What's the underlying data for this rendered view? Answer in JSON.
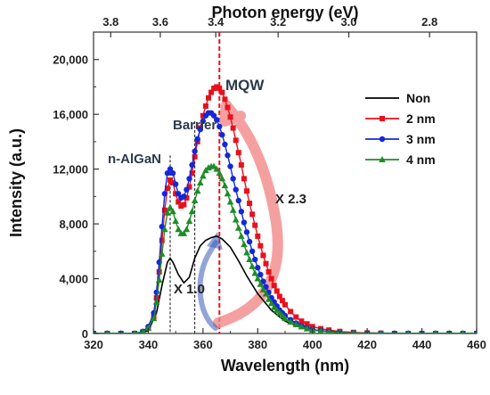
{
  "chart_data": {
    "type": "line",
    "xlabel": "Wavelength (nm)",
    "ylabel": "Intensity (a.u.)",
    "top_xlabel": "Photon energy (eV)",
    "xlim": [
      320,
      460
    ],
    "ylim": [
      0,
      22000
    ],
    "x_ticks": [
      320,
      340,
      360,
      380,
      400,
      420,
      440,
      460
    ],
    "x_tick_labels": [
      "320",
      "340",
      "360",
      "380",
      "400",
      "420",
      "440",
      "460"
    ],
    "y_ticks": [
      0,
      4000,
      8000,
      12000,
      16000,
      20000
    ],
    "y_tick_labels": [
      "0",
      "4,000",
      "8,000",
      "12,000",
      "16,000",
      "20,000"
    ],
    "top_ticks": [
      3.8,
      3.6,
      3.4,
      3.2,
      3.0,
      2.8
    ],
    "top_tick_labels": [
      "3.8",
      "3.6",
      "3.4",
      "3.2",
      "3.0",
      "2.8"
    ],
    "legend_position": "top-right",
    "series": [
      {
        "name": "Non",
        "color": "#000000",
        "marker": "none",
        "x": [
          320,
          336,
          340,
          343,
          345,
          347,
          348,
          349,
          351,
          353,
          355,
          357,
          359,
          361,
          363,
          365,
          367,
          370,
          373,
          376,
          380,
          385,
          390,
          395,
          400,
          410,
          420,
          440,
          460
        ],
        "y": [
          0,
          0,
          200,
          1500,
          3500,
          5200,
          5500,
          5200,
          4300,
          3700,
          4100,
          5500,
          6400,
          6800,
          7000,
          7100,
          6900,
          6300,
          5300,
          4200,
          2900,
          1700,
          900,
          500,
          250,
          80,
          30,
          0,
          0
        ]
      },
      {
        "name": "2 nm",
        "color": "#e8101c",
        "marker": "square",
        "x": [
          320,
          325,
          330,
          335,
          338,
          340,
          342,
          343,
          344,
          345,
          346,
          347,
          348,
          349,
          350,
          351,
          352,
          353,
          354,
          355,
          356,
          357,
          358,
          359,
          360,
          361,
          362,
          363,
          364,
          365,
          366,
          367,
          368,
          369,
          370,
          371,
          372,
          373,
          374,
          375,
          376,
          377,
          378,
          379,
          380,
          381,
          382,
          383,
          384,
          385,
          386,
          387,
          388,
          389,
          390,
          392,
          394,
          396,
          398,
          400,
          403,
          406,
          410,
          415,
          420,
          425,
          430,
          435,
          440,
          445,
          450,
          455,
          460
        ],
        "y": [
          0,
          0,
          0,
          0,
          100,
          400,
          1200,
          2600,
          4500,
          6800,
          9000,
          10600,
          11200,
          11000,
          10200,
          9600,
          9300,
          9400,
          9900,
          10700,
          11700,
          12900,
          14000,
          15000,
          15900,
          16600,
          17200,
          17600,
          17900,
          18000,
          17900,
          17600,
          17100,
          16500,
          15800,
          15000,
          14100,
          13200,
          12300,
          11300,
          10400,
          9500,
          8700,
          7900,
          7100,
          6400,
          5700,
          5100,
          4500,
          4000,
          3500,
          3100,
          2700,
          2400,
          2100,
          1600,
          1200,
          900,
          700,
          500,
          350,
          250,
          150,
          80,
          40,
          20,
          0,
          0,
          0,
          0,
          0,
          0,
          0
        ]
      },
      {
        "name": "3 nm",
        "color": "#1428d8",
        "marker": "circle",
        "x": [
          320,
          325,
          330,
          335,
          338,
          340,
          342,
          343,
          344,
          345,
          346,
          347,
          348,
          349,
          350,
          351,
          352,
          353,
          354,
          355,
          356,
          357,
          358,
          359,
          360,
          361,
          362,
          363,
          364,
          365,
          366,
          367,
          368,
          369,
          370,
          371,
          372,
          373,
          374,
          375,
          376,
          377,
          378,
          379,
          380,
          381,
          382,
          383,
          384,
          385,
          386,
          387,
          388,
          389,
          390,
          392,
          394,
          396,
          398,
          400,
          403,
          406,
          410,
          415,
          420,
          425,
          430,
          435,
          440,
          445,
          450,
          455,
          460
        ],
        "y": [
          0,
          0,
          0,
          0,
          150,
          500,
          1500,
          3000,
          5200,
          7800,
          10200,
          11700,
          12000,
          11700,
          10900,
          10200,
          9900,
          10000,
          10500,
          11300,
          12300,
          13300,
          14200,
          14900,
          15500,
          15900,
          16100,
          16100,
          15900,
          15600,
          15100,
          14500,
          13800,
          13000,
          12200,
          11300,
          10500,
          9700,
          8900,
          8100,
          7400,
          6700,
          6000,
          5400,
          4800,
          4300,
          3800,
          3400,
          3000,
          2600,
          2300,
          2000,
          1700,
          1500,
          1300,
          1000,
          750,
          550,
          400,
          300,
          200,
          130,
          80,
          40,
          20,
          0,
          0,
          0,
          0,
          0,
          0,
          0,
          0
        ]
      },
      {
        "name": "4 nm",
        "color": "#1e8c28",
        "marker": "triangle",
        "x": [
          320,
          325,
          330,
          335,
          338,
          340,
          342,
          343,
          344,
          345,
          346,
          347,
          348,
          349,
          350,
          351,
          352,
          353,
          354,
          355,
          356,
          357,
          358,
          359,
          360,
          361,
          362,
          363,
          364,
          365,
          366,
          367,
          368,
          369,
          370,
          371,
          372,
          373,
          374,
          375,
          376,
          377,
          378,
          379,
          380,
          381,
          382,
          383,
          384,
          385,
          386,
          387,
          388,
          389,
          390,
          392,
          394,
          396,
          398,
          400,
          403,
          406,
          410,
          415,
          420,
          425,
          430,
          435,
          440,
          445,
          450,
          455,
          460
        ],
        "y": [
          0,
          0,
          0,
          0,
          100,
          400,
          1100,
          2300,
          3900,
          5800,
          7600,
          8800,
          9200,
          8900,
          8200,
          7600,
          7300,
          7300,
          7600,
          8200,
          8900,
          9700,
          10400,
          11000,
          11500,
          11900,
          12100,
          12200,
          12200,
          12000,
          11700,
          11300,
          10800,
          10200,
          9600,
          9000,
          8300,
          7700,
          7100,
          6500,
          5900,
          5400,
          4900,
          4400,
          4000,
          3600,
          3200,
          2900,
          2500,
          2200,
          1900,
          1700,
          1500,
          1300,
          1100,
          850,
          650,
          500,
          350,
          250,
          170,
          110,
          70,
          40,
          20,
          0,
          0,
          0,
          0,
          0,
          0,
          0,
          0
        ]
      }
    ],
    "annotations": {
      "mqw": "MQW",
      "barrier": "Barrier",
      "n_algan": "n-AlGaN",
      "x23": "X 2.3",
      "x10": "X 1.0"
    },
    "reference_lines": {
      "n_algan_nm": 348,
      "barrier_nm": 357,
      "mqw_nm": 366
    }
  }
}
